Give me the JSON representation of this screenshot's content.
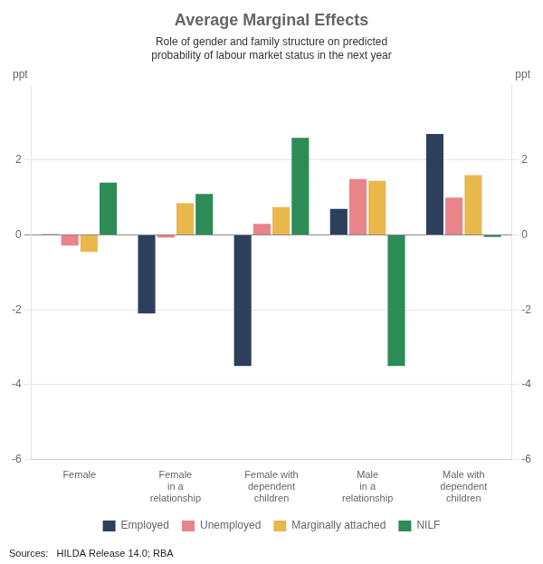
{
  "chart_data": {
    "type": "bar",
    "title": "Average Marginal Effects",
    "subtitle": "Role of gender and family structure on predicted\nprobability of labour market status in the next year",
    "categories": [
      "Female",
      "Female\nin a\nrelationship",
      "Female with\ndependent\nchildren",
      "Male\nin a\nrelationship",
      "Male with\ndependent\nchildren"
    ],
    "series": [
      {
        "name": "Employed",
        "color": "#2e3f5c",
        "values": [
          0.02,
          -2.1,
          -3.5,
          0.7,
          2.7
        ]
      },
      {
        "name": "Unemployed",
        "color": "#e8848a",
        "values": [
          -0.28,
          -0.07,
          0.3,
          1.5,
          1.0
        ]
      },
      {
        "name": "Marginally attached",
        "color": "#e8b84b",
        "values": [
          -0.45,
          0.85,
          0.75,
          1.45,
          1.6
        ]
      },
      {
        "name": "NILF",
        "color": "#2d8b57",
        "values": [
          1.4,
          1.1,
          2.6,
          -3.5,
          -0.05
        ]
      }
    ],
    "ylim": [
      -6,
      4
    ],
    "yticks": [
      -6,
      -4,
      -2,
      0,
      2
    ],
    "y2lim": [
      -6,
      4
    ],
    "y2ticks": [
      -6,
      -4,
      -2,
      0,
      2
    ],
    "ylabel": "ppt",
    "y2label": "ppt",
    "source": "Sources:   HILDA Release 14.0; RBA",
    "grid": true,
    "legend": "bottom"
  }
}
